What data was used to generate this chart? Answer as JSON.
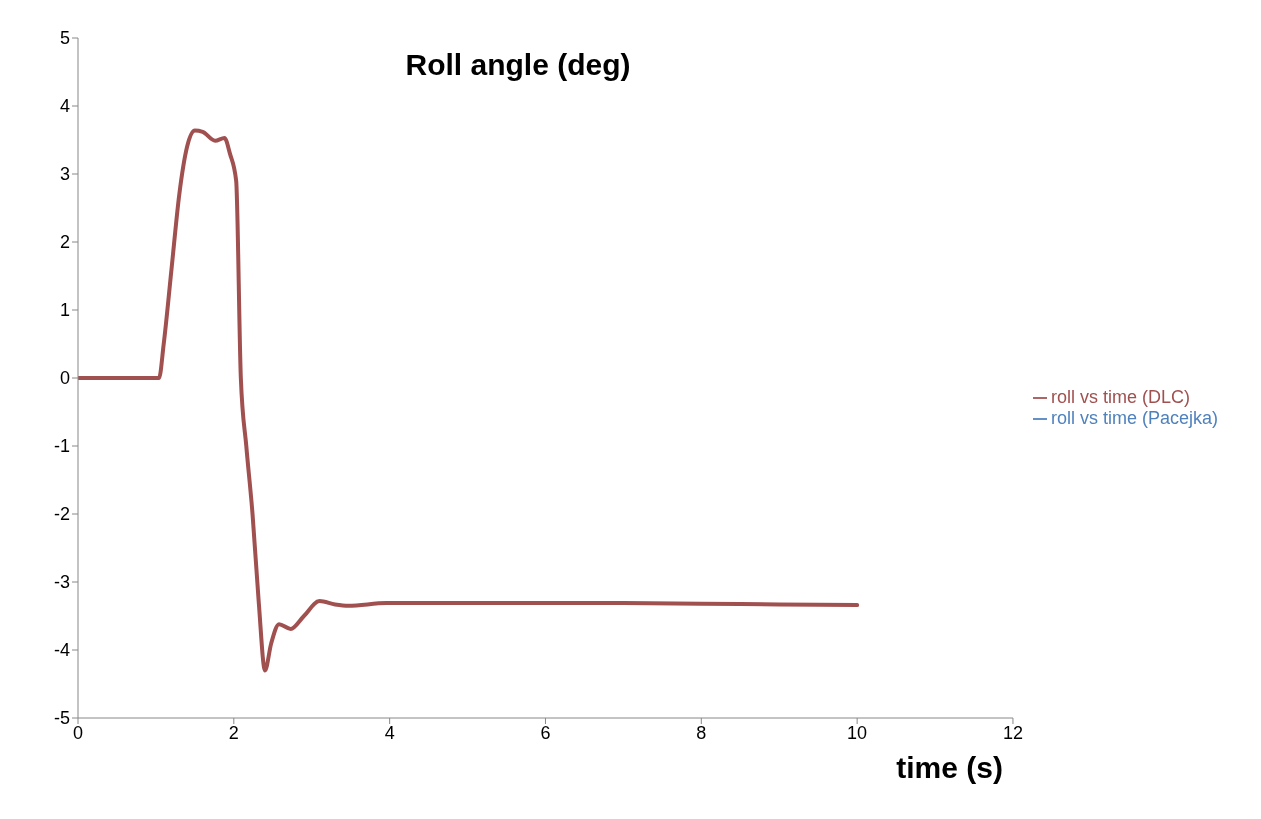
{
  "chart_data": {
    "type": "line",
    "title": "Roll angle (deg)",
    "xlabel": "time (s)",
    "x": [
      0,
      0.5,
      1.0,
      1.04,
      1.1,
      1.2,
      1.3,
      1.4,
      1.5,
      1.6,
      1.76,
      1.88,
      1.95,
      2.03,
      2.09,
      2.16,
      2.24,
      2.32,
      2.4,
      2.48,
      2.58,
      2.73,
      2.9,
      3.1,
      3.3,
      3.47,
      3.96,
      5,
      6,
      7,
      8,
      9,
      10
    ],
    "series": [
      {
        "name": "roll vs time (Pacejka)",
        "color": "#4f81bd",
        "values": [
          null,
          null,
          null,
          null,
          null,
          null,
          null,
          null,
          null,
          null,
          null,
          null,
          null,
          null,
          null,
          null,
          null,
          null,
          null,
          null,
          null,
          null,
          null,
          null,
          null,
          null,
          null,
          null,
          null,
          null,
          null,
          null,
          null
        ]
      },
      {
        "name": "roll vs time (DLC)",
        "color": "#a0504f",
        "values": [
          0,
          0,
          0,
          0,
          0.5,
          1.6,
          2.7,
          3.4,
          3.64,
          3.62,
          3.49,
          3.53,
          3.3,
          2.9,
          0,
          -1.0,
          -2.0,
          -3.3,
          -4.3,
          -3.9,
          -3.62,
          -3.69,
          -3.5,
          -3.28,
          -3.33,
          -3.35,
          -3.31,
          -3.31,
          -3.31,
          -3.31,
          -3.32,
          -3.33,
          -3.34
        ]
      }
    ],
    "xlim": [
      0,
      12
    ],
    "xticks": [
      0,
      2,
      4,
      6,
      8,
      10,
      12
    ],
    "ylim": [
      -5,
      5
    ],
    "yticks": [
      -5,
      -4,
      -3,
      -2,
      -1,
      0,
      1,
      2,
      3,
      4,
      5
    ],
    "grid": false,
    "legend": "right",
    "marker": "none",
    "line_style": "solid"
  }
}
